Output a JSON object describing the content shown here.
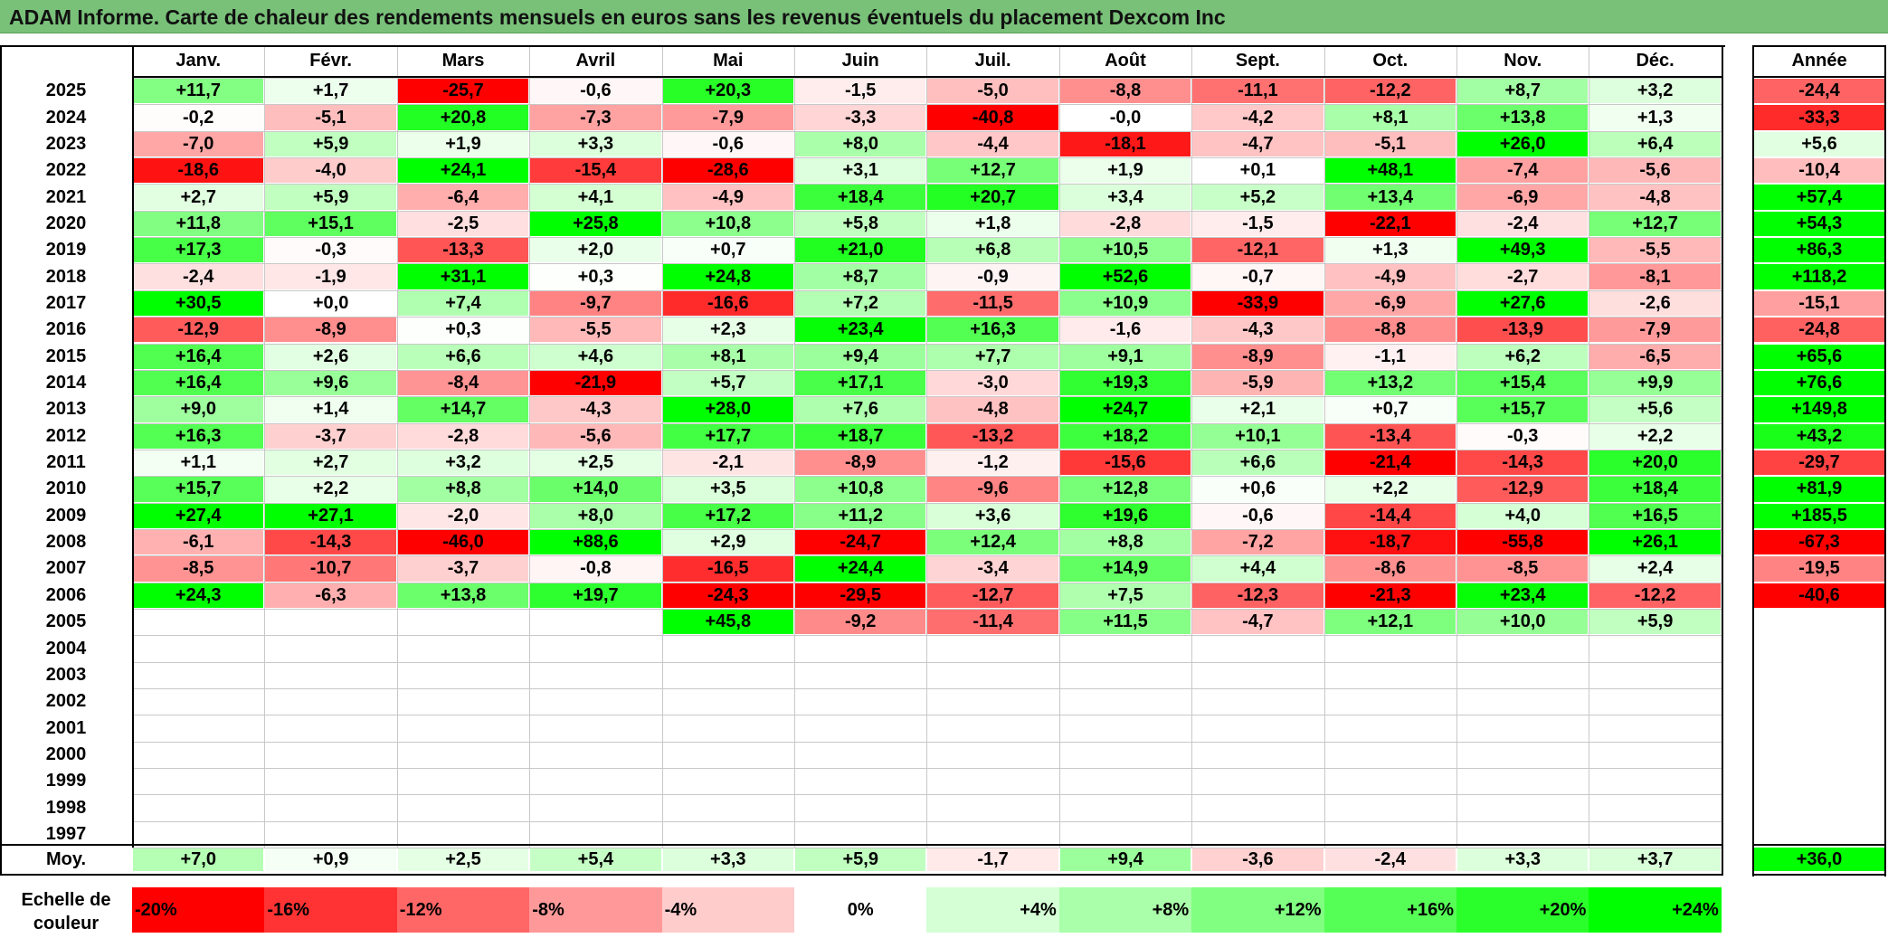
{
  "title": "ADAM Informe. Carte de chaleur des rendements mensuels en euros sans les revenus éventuels du placement Dexcom Inc",
  "chart_data": {
    "type": "heatmap",
    "title": "ADAM Informe. Carte de chaleur des rendements mensuels en euros sans les revenus éventuels du placement Dexcom Inc",
    "months": [
      "Janv.",
      "Févr.",
      "Mars",
      "Avril",
      "Mai",
      "Juin",
      "Juil.",
      "Août",
      "Sept.",
      "Oct.",
      "Nov.",
      "Déc."
    ],
    "annual_header": "Année",
    "rows": [
      {
        "year": "2025",
        "values": [
          "+11,7",
          "+1,7",
          "-25,7",
          "-0,6",
          "+20,3",
          "-1,5",
          "-5,0",
          "-8,8",
          "-11,1",
          "-12,2",
          "+8,7",
          "+3,2"
        ],
        "annual": "-24,4"
      },
      {
        "year": "2024",
        "values": [
          "-0,2",
          "-5,1",
          "+20,8",
          "-7,3",
          "-7,9",
          "-3,3",
          "-40,8",
          "-0,0",
          "-4,2",
          "+8,1",
          "+13,8",
          "+1,3"
        ],
        "annual": "-33,3"
      },
      {
        "year": "2023",
        "values": [
          "-7,0",
          "+5,9",
          "+1,9",
          "+3,3",
          "-0,6",
          "+8,0",
          "-4,4",
          "-18,1",
          "-4,7",
          "-5,1",
          "+26,0",
          "+6,4"
        ],
        "annual": "+5,6"
      },
      {
        "year": "2022",
        "values": [
          "-18,6",
          "-4,0",
          "+24,1",
          "-15,4",
          "-28,6",
          "+3,1",
          "+12,7",
          "+1,9",
          "+0,1",
          "+48,1",
          "-7,4",
          "-5,6"
        ],
        "annual": "-10,4"
      },
      {
        "year": "2021",
        "values": [
          "+2,7",
          "+5,9",
          "-6,4",
          "+4,1",
          "-4,9",
          "+18,4",
          "+20,7",
          "+3,4",
          "+5,2",
          "+13,4",
          "-6,9",
          "-4,8"
        ],
        "annual": "+57,4"
      },
      {
        "year": "2020",
        "values": [
          "+11,8",
          "+15,1",
          "-2,5",
          "+25,8",
          "+10,8",
          "+5,8",
          "+1,8",
          "-2,8",
          "-1,5",
          "-22,1",
          "-2,4",
          "+12,7"
        ],
        "annual": "+54,3"
      },
      {
        "year": "2019",
        "values": [
          "+17,3",
          "-0,3",
          "-13,3",
          "+2,0",
          "+0,7",
          "+21,0",
          "+6,8",
          "+10,5",
          "-12,1",
          "+1,3",
          "+49,3",
          "-5,5"
        ],
        "annual": "+86,3"
      },
      {
        "year": "2018",
        "values": [
          "-2,4",
          "-1,9",
          "+31,1",
          "+0,3",
          "+24,8",
          "+8,7",
          "-0,9",
          "+52,6",
          "-0,7",
          "-4,9",
          "-2,7",
          "-8,1"
        ],
        "annual": "+118,2"
      },
      {
        "year": "2017",
        "values": [
          "+30,5",
          "+0,0",
          "+7,4",
          "-9,7",
          "-16,6",
          "+7,2",
          "-11,5",
          "+10,9",
          "-33,9",
          "-6,9",
          "+27,6",
          "-2,6"
        ],
        "annual": "-15,1"
      },
      {
        "year": "2016",
        "values": [
          "-12,9",
          "-8,9",
          "+0,3",
          "-5,5",
          "+2,3",
          "+23,4",
          "+16,3",
          "-1,6",
          "-4,3",
          "-8,8",
          "-13,9",
          "-7,9"
        ],
        "annual": "-24,8"
      },
      {
        "year": "2015",
        "values": [
          "+16,4",
          "+2,6",
          "+6,6",
          "+4,6",
          "+8,1",
          "+9,4",
          "+7,7",
          "+9,1",
          "-8,9",
          "-1,1",
          "+6,2",
          "-6,5"
        ],
        "annual": "+65,6"
      },
      {
        "year": "2014",
        "values": [
          "+16,4",
          "+9,6",
          "-8,4",
          "-21,9",
          "+5,7",
          "+17,1",
          "-3,0",
          "+19,3",
          "-5,9",
          "+13,2",
          "+15,4",
          "+9,9"
        ],
        "annual": "+76,6"
      },
      {
        "year": "2013",
        "values": [
          "+9,0",
          "+1,4",
          "+14,7",
          "-4,3",
          "+28,0",
          "+7,6",
          "-4,8",
          "+24,7",
          "+2,1",
          "+0,7",
          "+15,7",
          "+5,6"
        ],
        "annual": "+149,8"
      },
      {
        "year": "2012",
        "values": [
          "+16,3",
          "-3,7",
          "-2,8",
          "-5,6",
          "+17,7",
          "+18,7",
          "-13,2",
          "+18,2",
          "+10,1",
          "-13,4",
          "-0,3",
          "+2,2"
        ],
        "annual": "+43,2"
      },
      {
        "year": "2011",
        "values": [
          "+1,1",
          "+2,7",
          "+3,2",
          "+2,5",
          "-2,1",
          "-8,9",
          "-1,2",
          "-15,6",
          "+6,6",
          "-21,4",
          "-14,3",
          "+20,0"
        ],
        "annual": "-29,7"
      },
      {
        "year": "2010",
        "values": [
          "+15,7",
          "+2,2",
          "+8,8",
          "+14,0",
          "+3,5",
          "+10,8",
          "-9,6",
          "+12,8",
          "+0,6",
          "+2,2",
          "-12,9",
          "+18,4"
        ],
        "annual": "+81,9"
      },
      {
        "year": "2009",
        "values": [
          "+27,4",
          "+27,1",
          "-2,0",
          "+8,0",
          "+17,2",
          "+11,2",
          "+3,6",
          "+19,6",
          "-0,6",
          "-14,4",
          "+4,0",
          "+16,5"
        ],
        "annual": "+185,5"
      },
      {
        "year": "2008",
        "values": [
          "-6,1",
          "-14,3",
          "-46,0",
          "+88,6",
          "+2,9",
          "-24,7",
          "+12,4",
          "+8,8",
          "-7,2",
          "-18,7",
          "-55,8",
          "+26,1"
        ],
        "annual": "-67,3"
      },
      {
        "year": "2007",
        "values": [
          "-8,5",
          "-10,7",
          "-3,7",
          "-0,8",
          "-16,5",
          "+24,4",
          "-3,4",
          "+14,9",
          "+4,4",
          "-8,6",
          "-8,5",
          "+2,4"
        ],
        "annual": "-19,5"
      },
      {
        "year": "2006",
        "values": [
          "+24,3",
          "-6,3",
          "+13,8",
          "+19,7",
          "-24,3",
          "-29,5",
          "-12,7",
          "+7,5",
          "-12,3",
          "-21,3",
          "+23,4",
          "-12,2"
        ],
        "annual": "-40,6"
      },
      {
        "year": "2005",
        "values": [
          "",
          "",
          "",
          "",
          "+45,8",
          "-9,2",
          "-11,4",
          "+11,5",
          "-4,7",
          "+12,1",
          "+10,0",
          "+5,9"
        ],
        "annual": ""
      },
      {
        "year": "2004",
        "values": [
          "",
          "",
          "",
          "",
          "",
          "",
          "",
          "",
          "",
          "",
          "",
          ""
        ],
        "annual": ""
      },
      {
        "year": "2003",
        "values": [
          "",
          "",
          "",
          "",
          "",
          "",
          "",
          "",
          "",
          "",
          "",
          ""
        ],
        "annual": ""
      },
      {
        "year": "2002",
        "values": [
          "",
          "",
          "",
          "",
          "",
          "",
          "",
          "",
          "",
          "",
          "",
          ""
        ],
        "annual": ""
      },
      {
        "year": "2001",
        "values": [
          "",
          "",
          "",
          "",
          "",
          "",
          "",
          "",
          "",
          "",
          "",
          ""
        ],
        "annual": ""
      },
      {
        "year": "2000",
        "values": [
          "",
          "",
          "",
          "",
          "",
          "",
          "",
          "",
          "",
          "",
          "",
          ""
        ],
        "annual": ""
      },
      {
        "year": "1999",
        "values": [
          "",
          "",
          "",
          "",
          "",
          "",
          "",
          "",
          "",
          "",
          "",
          ""
        ],
        "annual": ""
      },
      {
        "year": "1998",
        "values": [
          "",
          "",
          "",
          "",
          "",
          "",
          "",
          "",
          "",
          "",
          "",
          ""
        ],
        "annual": ""
      },
      {
        "year": "1997",
        "values": [
          "",
          "",
          "",
          "",
          "",
          "",
          "",
          "",
          "",
          "",
          "",
          ""
        ],
        "annual": ""
      }
    ],
    "average": {
      "label": "Moy.",
      "values": [
        "+7,0",
        "+0,9",
        "+2,5",
        "+5,4",
        "+3,3",
        "+5,9",
        "-1,7",
        "+9,4",
        "-3,6",
        "-2,4",
        "+3,3",
        "+3,7"
      ],
      "annual": "+36,0"
    },
    "scale": {
      "label_line1": "Echelle de",
      "label_line2": "couleur",
      "steps": [
        {
          "label": "-20%",
          "value": -20
        },
        {
          "label": "-16%",
          "value": -16
        },
        {
          "label": "-12%",
          "value": -12
        },
        {
          "label": "-8%",
          "value": -8
        },
        {
          "label": "-4%",
          "value": -4
        },
        {
          "label": "0%",
          "value": 0
        },
        {
          "label": "+4%",
          "value": 4
        },
        {
          "label": "+8%",
          "value": 8
        },
        {
          "label": "+12%",
          "value": 12
        },
        {
          "label": "+16%",
          "value": 16
        },
        {
          "label": "+20%",
          "value": 20
        },
        {
          "label": "+24%",
          "value": 24
        }
      ]
    },
    "colors": {
      "negative": "#ff0000",
      "neutral": "#ffffff",
      "positive": "#00ff00",
      "title_bar": "#79c179"
    }
  }
}
